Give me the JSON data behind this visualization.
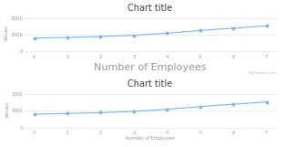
{
  "title": "Chart title",
  "xlabel": "Number of Employees",
  "ylabel": "Values",
  "x": [
    0,
    1,
    2,
    3,
    4,
    5,
    6,
    7
  ],
  "y": [
    800,
    840,
    890,
    970,
    1090,
    1260,
    1400,
    1540
  ],
  "yticks": [
    0,
    1000,
    2000
  ],
  "xticks": [
    0,
    1,
    2,
    3,
    4,
    5,
    6,
    7
  ],
  "line_color": "#7cb5ec",
  "marker_color": "#7cb5ec",
  "bg_color": "#ffffff",
  "grid_color": "#e0e0e0",
  "title_fontsize": 7,
  "xlabel_fontsize_top": 8,
  "xlabel_fontsize_bottom": 3.5,
  "ylabel_fontsize": 4,
  "tick_fontsize_top": 4,
  "tick_fontsize_bottom": 3.5,
  "watermark": "Highcharts.com",
  "text_color": "#999999",
  "title_color": "#444444"
}
